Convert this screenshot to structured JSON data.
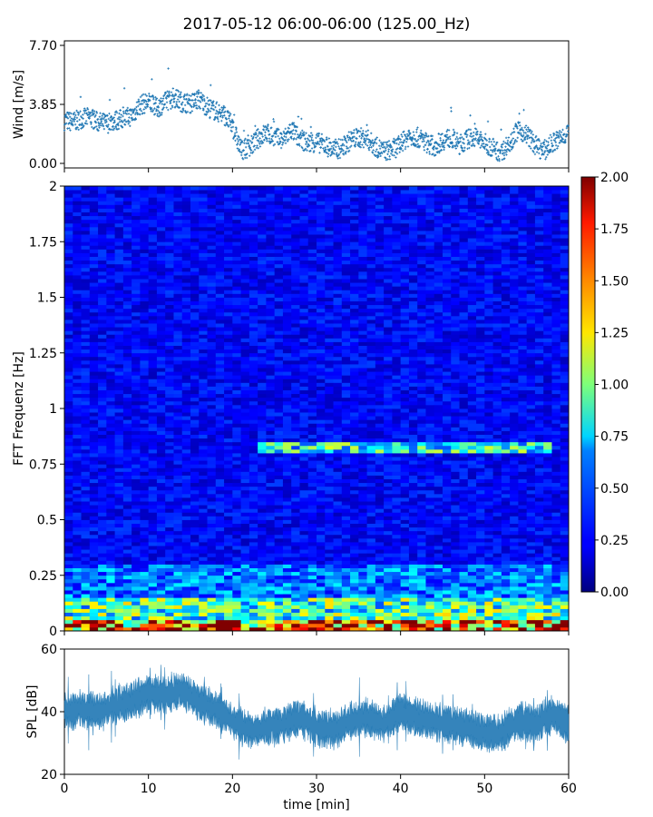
{
  "title": "2017-05-12 06:00-06:00 (125.00_Hz)",
  "chart_data": [
    {
      "type": "scatter",
      "panel": "wind",
      "ylabel": "Wind [m/s]",
      "ylim": [
        0,
        7.7
      ],
      "yticks": [
        0,
        3.85,
        7.7
      ],
      "ytick_labels": [
        "0.00",
        "3.85",
        "7.70"
      ],
      "xlim": [
        0,
        60
      ],
      "marker": "+",
      "color": "#1f77b4",
      "series": [
        {
          "x": [
            0,
            1,
            2,
            3,
            4,
            5,
            6,
            7,
            8,
            9,
            10,
            11,
            12,
            13,
            14,
            15,
            16,
            17,
            18,
            19,
            20,
            21,
            22,
            23,
            24,
            25,
            26,
            27,
            28,
            29,
            30,
            31,
            32,
            33,
            34,
            35,
            36,
            37,
            38,
            39,
            40,
            41,
            42,
            43,
            44,
            45,
            46,
            47,
            48,
            49,
            50,
            51,
            52,
            53,
            54,
            55,
            56,
            57,
            58,
            59,
            60
          ],
          "values": [
            2.8,
            2.7,
            2.9,
            3.0,
            2.7,
            2.6,
            2.8,
            2.9,
            3.1,
            3.8,
            4.0,
            3.6,
            4.0,
            4.3,
            4.0,
            3.9,
            4.2,
            3.7,
            3.4,
            3.2,
            2.4,
            0.9,
            1.0,
            1.6,
            2.0,
            1.7,
            1.5,
            2.2,
            1.6,
            1.3,
            1.4,
            1.2,
            0.9,
            1.0,
            1.5,
            1.7,
            1.6,
            1.1,
            0.8,
            0.9,
            1.2,
            1.8,
            1.7,
            1.4,
            1.1,
            1.5,
            1.7,
            1.2,
            1.6,
            1.7,
            1.3,
            1.0,
            0.7,
            1.4,
            2.2,
            1.9,
            1.2,
            0.8,
            1.3,
            1.6,
            2.1
          ]
        }
      ]
    },
    {
      "type": "heatmap",
      "panel": "spectrogram",
      "ylabel": "FFT Frequenz [Hz]",
      "xlim": [
        0,
        60
      ],
      "ylim": [
        0,
        2
      ],
      "yticks": [
        0,
        0.25,
        0.5,
        0.75,
        1,
        1.25,
        1.5,
        1.75,
        2
      ],
      "ytick_labels": [
        "0",
        "0.25",
        "0.5",
        "0.75",
        "1",
        "1.25",
        "1.5",
        "1.75",
        "2"
      ],
      "colormap": "jet",
      "colorbar": {
        "min": 0,
        "max": 2,
        "ticks": [
          0,
          0.25,
          0.5,
          0.75,
          1.0,
          1.25,
          1.5,
          1.75,
          2.0
        ],
        "tick_labels": [
          "0.00",
          "0.25",
          "0.50",
          "0.75",
          "1.00",
          "1.25",
          "1.50",
          "1.75",
          "2.00"
        ]
      },
      "features": [
        {
          "freq": [
            0.0,
            0.05
          ],
          "level": 1.6
        },
        {
          "freq": [
            0.05,
            0.15
          ],
          "level": 0.9
        },
        {
          "freq": [
            0.15,
            0.3
          ],
          "level": 0.5
        },
        {
          "freq": [
            0.3,
            2.0
          ],
          "level": 0.25
        },
        {
          "freq": [
            0.8,
            0.85
          ],
          "time": [
            23,
            58
          ],
          "level": 0.8
        }
      ]
    },
    {
      "type": "line",
      "panel": "spl",
      "ylabel": "SPL [dB]",
      "xlabel": "time [min]",
      "xlim": [
        0,
        60
      ],
      "ylim": [
        20,
        60
      ],
      "yticks": [
        20,
        40,
        60
      ],
      "xticks": [
        0,
        10,
        20,
        30,
        40,
        50,
        60
      ],
      "color": "#1f77b4",
      "series": [
        {
          "x": [
            0,
            2,
            4,
            6,
            8,
            10,
            12,
            14,
            16,
            18,
            20,
            22,
            24,
            26,
            28,
            30,
            32,
            34,
            36,
            38,
            40,
            42,
            44,
            46,
            48,
            50,
            52,
            54,
            56,
            58,
            60
          ],
          "values": [
            40,
            41,
            40,
            42,
            43,
            46,
            45,
            47,
            43,
            41,
            37,
            34,
            35,
            36,
            38,
            35,
            34,
            37,
            38,
            36,
            40,
            38,
            37,
            36,
            35,
            33,
            33,
            37,
            36,
            39,
            36
          ]
        }
      ]
    }
  ]
}
